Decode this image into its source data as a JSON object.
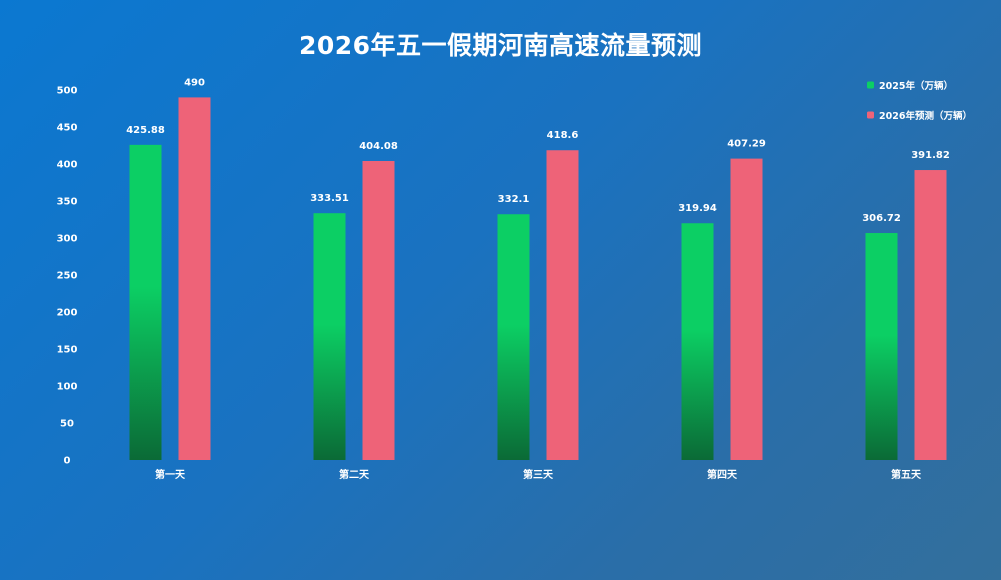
{
  "chart_data": {
    "type": "bar",
    "title": "2026年五一假期河南高速流量预测",
    "categories": [
      "第一天",
      "第二天",
      "第三天",
      "第四天",
      "第五天"
    ],
    "series": [
      {
        "name": "2025年（万辆）",
        "values": [
          425.88,
          333.51,
          332.1,
          319.94,
          306.72
        ],
        "color_top": "#0ccf64",
        "color_bottom": "#0b6a36"
      },
      {
        "name": "2026年预测（万辆）",
        "values": [
          490,
          404.08,
          418.6,
          407.29,
          391.82
        ],
        "color_top": "#ee6378",
        "color_bottom": "#ee6378"
      }
    ],
    "data_labels": [
      [
        "425.88",
        "333.51",
        "332.1",
        "319.94",
        "306.72"
      ],
      [
        "490",
        "404.08",
        "418.6",
        "407.29",
        "391.82"
      ]
    ],
    "ylim": [
      0,
      500
    ],
    "yticks": [
      0,
      50,
      100,
      150,
      200,
      250,
      300,
      350,
      400,
      450,
      500
    ],
    "xlabel": "",
    "ylabel": "",
    "grid": false,
    "legend": "top-right"
  }
}
